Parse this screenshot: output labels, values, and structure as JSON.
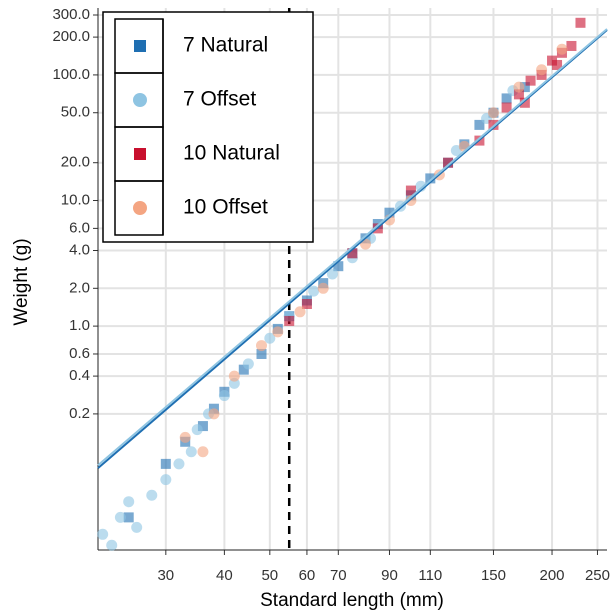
{
  "chart_data": {
    "type": "scatter",
    "x_label": "Standard length (mm)",
    "y_label": "Weight (g)",
    "log_x": true,
    "log_y": true,
    "grid": true,
    "legend_position": "top-left",
    "xlim": [
      21.5,
      262
    ],
    "ylim": [
      0.0165,
      341
    ],
    "xticks": [
      30,
      40,
      50,
      60,
      70,
      90,
      110,
      150,
      200,
      250
    ],
    "yticks": [
      {
        "value": 300,
        "label": "300.0"
      },
      {
        "value": 200,
        "label": "200.0"
      },
      {
        "value": 100,
        "label": "100.0"
      },
      {
        "value": 50,
        "label": "50.0"
      },
      {
        "value": 20,
        "label": "20.0"
      },
      {
        "value": 10,
        "label": "10.0"
      },
      {
        "value": 6,
        "label": "6.0"
      },
      {
        "value": 4,
        "label": "4.0"
      },
      {
        "value": 2,
        "label": "2.0"
      },
      {
        "value": 1,
        "label": "1.0"
      },
      0.6,
      0.4,
      0.2
    ],
    "vline": 55,
    "fits": [
      {
        "color": "#1f6fb2",
        "x": [
          21.5,
          262
        ],
        "values": [
          0.074,
          228
        ]
      },
      {
        "color": "#8ec4e2",
        "x": [
          21.5,
          262
        ],
        "values": [
          0.078,
          232
        ]
      }
    ],
    "series": [
      {
        "name": "7 Natural",
        "color": "#1f6fb2",
        "shape": "square",
        "x": [
          25,
          30,
          33,
          36,
          38,
          40,
          44,
          48,
          52,
          55,
          60,
          65,
          70,
          75,
          80,
          85,
          90,
          100,
          110,
          120,
          130,
          140,
          150,
          160,
          175
        ],
        "values": [
          0.03,
          0.08,
          0.12,
          0.16,
          0.22,
          0.3,
          0.45,
          0.6,
          0.95,
          1.2,
          1.6,
          2.2,
          3,
          3.8,
          5,
          6.5,
          8,
          11,
          15,
          20,
          28,
          40,
          50,
          65,
          80
        ]
      },
      {
        "name": "7 Offset",
        "color": "#8ec4e2",
        "shape": "circle",
        "x": [
          22,
          23,
          24,
          25,
          26,
          28,
          30,
          32,
          34,
          35,
          37,
          40,
          42,
          45,
          50,
          55,
          62,
          68,
          75,
          82,
          95,
          105,
          125,
          145,
          165
        ],
        "values": [
          0.022,
          0.018,
          0.03,
          0.04,
          0.025,
          0.045,
          0.06,
          0.08,
          0.1,
          0.15,
          0.2,
          0.28,
          0.35,
          0.5,
          0.8,
          1.2,
          1.9,
          2.6,
          3.5,
          5,
          9,
          13,
          25,
          45,
          75
        ]
      },
      {
        "name": "10 Natural",
        "color": "#c8102e",
        "shape": "square",
        "x": [
          55,
          60,
          75,
          85,
          100,
          120,
          140,
          150,
          160,
          170,
          180,
          190,
          200,
          210,
          220,
          230,
          175,
          205
        ],
        "values": [
          1.1,
          1.5,
          3.8,
          6,
          12,
          20,
          30,
          40,
          55,
          70,
          90,
          100,
          130,
          150,
          170,
          260,
          60,
          120
        ]
      },
      {
        "name": "10 Offset",
        "color": "#f4a582",
        "shape": "circle",
        "x": [
          33,
          36,
          38,
          42,
          48,
          52,
          58,
          65,
          80,
          90,
          100,
          115,
          130,
          150,
          170,
          190,
          210
        ],
        "values": [
          0.13,
          0.1,
          0.2,
          0.4,
          0.7,
          0.9,
          1.3,
          2,
          4.5,
          7,
          10,
          16,
          27,
          50,
          80,
          110,
          160
        ]
      }
    ]
  }
}
